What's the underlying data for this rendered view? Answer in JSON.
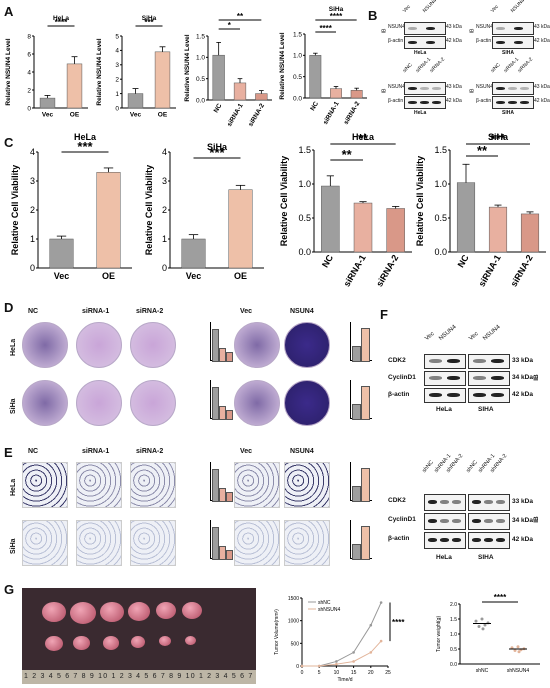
{
  "panels": {
    "A": "A",
    "B": "B",
    "C": "C",
    "D": "D",
    "E": "E",
    "F": "F",
    "G": "G"
  },
  "colors": {
    "vec": "#9e9e9e",
    "oe": "#eec0a8",
    "si1": "#e8b0a0",
    "si2": "#d99888",
    "nc": "#9e9e9e",
    "nsun4_dish": "#3b2a8a",
    "crystal": "#c9a5d8"
  },
  "chart_data": [
    {
      "type": "bar",
      "id": "A1",
      "title": "HeLa",
      "ylabel": "Relative NSUN4 Level",
      "categories": [
        "Vec",
        "OE"
      ],
      "values": [
        1.1,
        4.9
      ],
      "errors": [
        0.3,
        0.8
      ],
      "ylim": [
        0,
        8
      ],
      "yticks": [
        0,
        2,
        4,
        6,
        8
      ],
      "sig": "****"
    },
    {
      "type": "bar",
      "id": "A2",
      "title": "SiHa",
      "ylabel": "Relative NSUN4 Level",
      "categories": [
        "Vec",
        "OE"
      ],
      "values": [
        1.0,
        3.9
      ],
      "errors": [
        0.35,
        0.35
      ],
      "ylim": [
        0,
        5
      ],
      "yticks": [
        0,
        1,
        2,
        3,
        4,
        5
      ],
      "sig": "***"
    },
    {
      "type": "bar",
      "id": "A3",
      "title": "HeLa",
      "ylabel": "Relative NSUN4 Level",
      "categories": [
        "NC",
        "siRNA-1",
        "siRNA-2"
      ],
      "values": [
        1.05,
        0.4,
        0.15
      ],
      "errors": [
        0.3,
        0.1,
        0.07
      ],
      "ylim": [
        0,
        1.5
      ],
      "yticks": [
        0.0,
        0.5,
        1.0,
        1.5
      ],
      "sig": [
        "*",
        "**"
      ]
    },
    {
      "type": "bar",
      "id": "A4",
      "title": "SiHa",
      "ylabel": "Relative NSUN4 Level",
      "categories": [
        "NC",
        "siRNA-1",
        "siRNA-2"
      ],
      "values": [
        1.0,
        0.22,
        0.18
      ],
      "errors": [
        0.05,
        0.05,
        0.05
      ],
      "ylim": [
        0,
        1.5
      ],
      "yticks": [
        0.0,
        0.5,
        1.0,
        1.5
      ],
      "sig": [
        "****",
        "****"
      ]
    },
    {
      "type": "bar",
      "id": "C1",
      "title": "HeLa",
      "ylabel": "Relative Cell Viability",
      "categories": [
        "Vec",
        "OE"
      ],
      "values": [
        1.0,
        3.3
      ],
      "errors": [
        0.1,
        0.15
      ],
      "ylim": [
        0,
        4
      ],
      "yticks": [
        0,
        1,
        2,
        3,
        4
      ],
      "sig": "***"
    },
    {
      "type": "bar",
      "id": "C2",
      "title": "SiHa",
      "ylabel": "Relative Cell Viability",
      "categories": [
        "Vec",
        "OE"
      ],
      "values": [
        1.0,
        2.7
      ],
      "errors": [
        0.15,
        0.15
      ],
      "ylim": [
        0,
        4
      ],
      "yticks": [
        0,
        1,
        2,
        3,
        4
      ],
      "sig": "***"
    },
    {
      "type": "bar",
      "id": "C3",
      "title": "HeLa",
      "ylabel": "Relative Cell Viability",
      "categories": [
        "NC",
        "siRNA-1",
        "siRNA-2"
      ],
      "values": [
        0.97,
        0.72,
        0.64
      ],
      "errors": [
        0.15,
        0.02,
        0.03
      ],
      "ylim": [
        0,
        1.5
      ],
      "yticks": [
        0.0,
        0.5,
        1.0,
        1.5
      ],
      "sig": [
        "**",
        "**"
      ]
    },
    {
      "type": "bar",
      "id": "C4",
      "title": "SiHa",
      "ylabel": "Relative Cell Viability",
      "categories": [
        "NC",
        "siRNA-1",
        "siRNA-2"
      ],
      "values": [
        1.02,
        0.66,
        0.56
      ],
      "errors": [
        0.27,
        0.03,
        0.03
      ],
      "ylim": [
        0,
        1.5
      ],
      "yticks": [
        0.0,
        0.5,
        1.0,
        1.5
      ],
      "sig": [
        "**",
        "***"
      ]
    },
    {
      "type": "line",
      "id": "G2",
      "xlabel": "Time/d",
      "ylabel": "Tumor Volume(mm³)",
      "series": [
        {
          "name": "shNC",
          "x": [
            0,
            5,
            10,
            15,
            20,
            23
          ],
          "y": [
            0,
            0,
            100,
            300,
            900,
            1400
          ]
        },
        {
          "name": "shNSUN4",
          "x": [
            0,
            5,
            10,
            15,
            20,
            23
          ],
          "y": [
            0,
            0,
            40,
            100,
            300,
            550
          ]
        }
      ],
      "ylim": [
        0,
        1500
      ],
      "yticks": [
        0,
        500,
        1000,
        1500
      ],
      "xticks": [
        0,
        5,
        10,
        15,
        20,
        25
      ],
      "sig": "****"
    },
    {
      "type": "scatter",
      "id": "G3",
      "ylabel": "Tumor weight(g)",
      "categories": [
        "shNC",
        "shNSUN4"
      ],
      "values": [
        1.35,
        0.5
      ],
      "ylim": [
        0,
        2.0
      ],
      "yticks": [
        0.0,
        0.5,
        1.0,
        1.5,
        2.0
      ],
      "sig": "****"
    }
  ],
  "A_texts": {
    "c1": "HeLa",
    "c2": "SiHa",
    "c4": "SiHa"
  },
  "B": {
    "top_left": {
      "rows": [
        "NSUN4",
        "β-actin"
      ],
      "cols": [
        "Vec",
        "NSUN4"
      ],
      "kda": [
        "43 kDa",
        "42 kDa"
      ],
      "cell": "HeLa",
      "ib": "IB"
    },
    "top_right": {
      "rows": [
        "NSUN4",
        "β-actin"
      ],
      "cols": [
        "Vec",
        "NSUN4"
      ],
      "kda": [
        "43 kDa",
        "42 kDa"
      ],
      "cell": "SIHA",
      "ib": "IB"
    },
    "bot_left": {
      "rows": [
        "NSUN4",
        "β-actin"
      ],
      "cols": [
        "siNC",
        "siRNA-1",
        "siRNA-2"
      ],
      "kda": [
        "43 kDa",
        "42 kDa"
      ],
      "cell": "HeLa",
      "ib": "IB"
    },
    "bot_right": {
      "rows": [
        "NSUN4",
        "β-actin"
      ],
      "cols": [
        "siNC",
        "siRNA-1",
        "siRNA-2"
      ],
      "kda": [
        "43 kDa",
        "42 kDa"
      ],
      "cell": "SIHA",
      "ib": "IB"
    }
  },
  "D": {
    "cols": [
      "NC",
      "siRNA-1",
      "siRNA-2",
      "Vec",
      "NSUN4"
    ],
    "rows": [
      "HeLa",
      "SiHa"
    ],
    "small_ylabel": "Colony number"
  },
  "E": {
    "cols": [
      "NC",
      "siRNA-1",
      "siRNA-2",
      "Vec",
      "NSUN4"
    ],
    "rows": [
      "HeLa",
      "SiHa"
    ],
    "small_ylabel": "Invaded cells"
  },
  "F": {
    "rows": [
      "CDK2",
      "CyclinD1",
      "β-actin"
    ],
    "kda": [
      "33 kDa",
      "34 kDa",
      "42 kDa"
    ],
    "cols": [
      "Vec",
      "NSUN4",
      "Vec",
      "NSUN4"
    ],
    "cells": [
      "HeLa",
      "SIHA"
    ],
    "ib": "IB"
  },
  "E_wb": {
    "rows": [
      "CDK2",
      "CyclinD1",
      "β-actin"
    ],
    "kda": [
      "33 kDa",
      "34 kDa",
      "42 kDa"
    ],
    "cols": [
      "shNC",
      "shRNA-1",
      "shRNA-2",
      "shNC",
      "shRNA-1",
      "shRNA-2"
    ],
    "cells": [
      "HeLa",
      "SIHA"
    ],
    "ib": "IB"
  },
  "G": {
    "ruler": "1 2 3 4 5 6 7 8 9 10 1 2 3 4 5 6 7 8 9 10 1 2 3 4 5 6 7 8 9 2"
  }
}
